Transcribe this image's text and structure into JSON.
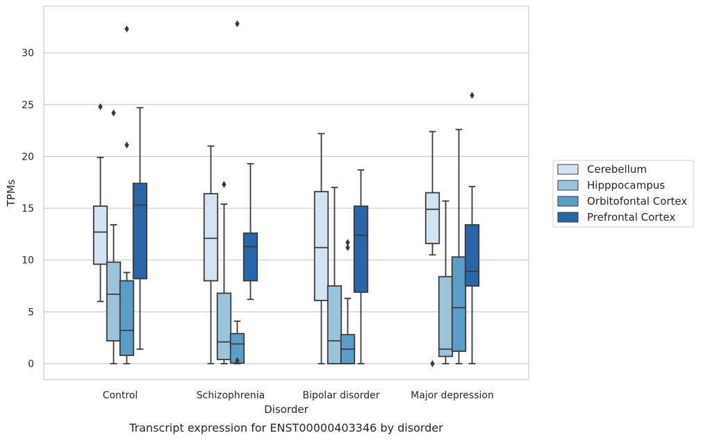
{
  "caption": "Transcript expression for ENST00000403346 by disorder",
  "chart_data": {
    "type": "box",
    "xlabel": "Disorder",
    "ylabel": "TPMs",
    "ylim": [
      -1.6,
      34.5
    ],
    "yticks": [
      0,
      5,
      10,
      15,
      20,
      25,
      30
    ],
    "grid": "horizontal",
    "legend_placement": "right",
    "categories": [
      "Control",
      "Schizophrenia",
      "Bipolar disorder",
      "Major depression"
    ],
    "series": [
      {
        "name": "Cerebellum",
        "color": "#d4e3f3",
        "boxes": [
          {
            "whislo": 6.0,
            "q1": 9.6,
            "med": 12.7,
            "q3": 15.2,
            "whishi": 19.9,
            "fliers": [
              24.8
            ]
          },
          {
            "whislo": 0.0,
            "q1": 8.0,
            "med": 12.1,
            "q3": 16.4,
            "whishi": 21.0,
            "fliers": []
          },
          {
            "whislo": 0.0,
            "q1": 6.1,
            "med": 11.2,
            "q3": 16.6,
            "whishi": 22.2,
            "fliers": []
          },
          {
            "whislo": 10.5,
            "q1": 11.6,
            "med": 14.9,
            "q3": 16.5,
            "whishi": 22.4,
            "fliers": [
              0.0
            ]
          }
        ]
      },
      {
        "name": "Hipppocampus",
        "color": "#9bc3dc",
        "boxes": [
          {
            "whislo": 0.0,
            "q1": 2.2,
            "med": 6.7,
            "q3": 9.8,
            "whishi": 13.4,
            "fliers": [
              24.2
            ]
          },
          {
            "whislo": 0.0,
            "q1": 0.4,
            "med": 2.1,
            "q3": 6.8,
            "whishi": 15.4,
            "fliers": [
              17.3
            ]
          },
          {
            "whislo": 0.0,
            "q1": 0.0,
            "med": 2.2,
            "q3": 7.5,
            "whishi": 17.0,
            "fliers": []
          },
          {
            "whislo": 0.0,
            "q1": 0.7,
            "med": 1.4,
            "q3": 8.4,
            "whishi": 15.7,
            "fliers": []
          }
        ]
      },
      {
        "name": "Orbitofontal Cortex",
        "color": "#5c9dc8",
        "boxes": [
          {
            "whislo": 0.0,
            "q1": 0.8,
            "med": 3.2,
            "q3": 8.0,
            "whishi": 8.8,
            "fliers": [
              21.1,
              32.3
            ]
          },
          {
            "whislo": 0.0,
            "q1": 0.05,
            "med": 1.9,
            "q3": 2.9,
            "whishi": 4.1,
            "fliers": [
              0.3,
              32.8
            ]
          },
          {
            "whislo": 0.0,
            "q1": 0.0,
            "med": 1.4,
            "q3": 2.8,
            "whishi": 6.3,
            "fliers": [
              11.2,
              11.7
            ]
          },
          {
            "whislo": 0.0,
            "q1": 1.2,
            "med": 5.4,
            "q3": 10.3,
            "whishi": 22.6,
            "fliers": []
          }
        ]
      },
      {
        "name": "Prefrontal Cortex",
        "color": "#2966a8",
        "boxes": [
          {
            "whislo": 1.4,
            "q1": 8.2,
            "med": 15.3,
            "q3": 17.4,
            "whishi": 24.7,
            "fliers": []
          },
          {
            "whislo": 6.2,
            "q1": 8.0,
            "med": 11.3,
            "q3": 12.6,
            "whishi": 19.3,
            "fliers": []
          },
          {
            "whislo": 0.0,
            "q1": 6.9,
            "med": 12.4,
            "q3": 15.2,
            "whishi": 18.7,
            "fliers": []
          },
          {
            "whislo": 0.0,
            "q1": 7.5,
            "med": 8.9,
            "q3": 13.4,
            "whishi": 17.1,
            "fliers": [
              25.9
            ]
          }
        ]
      }
    ]
  }
}
